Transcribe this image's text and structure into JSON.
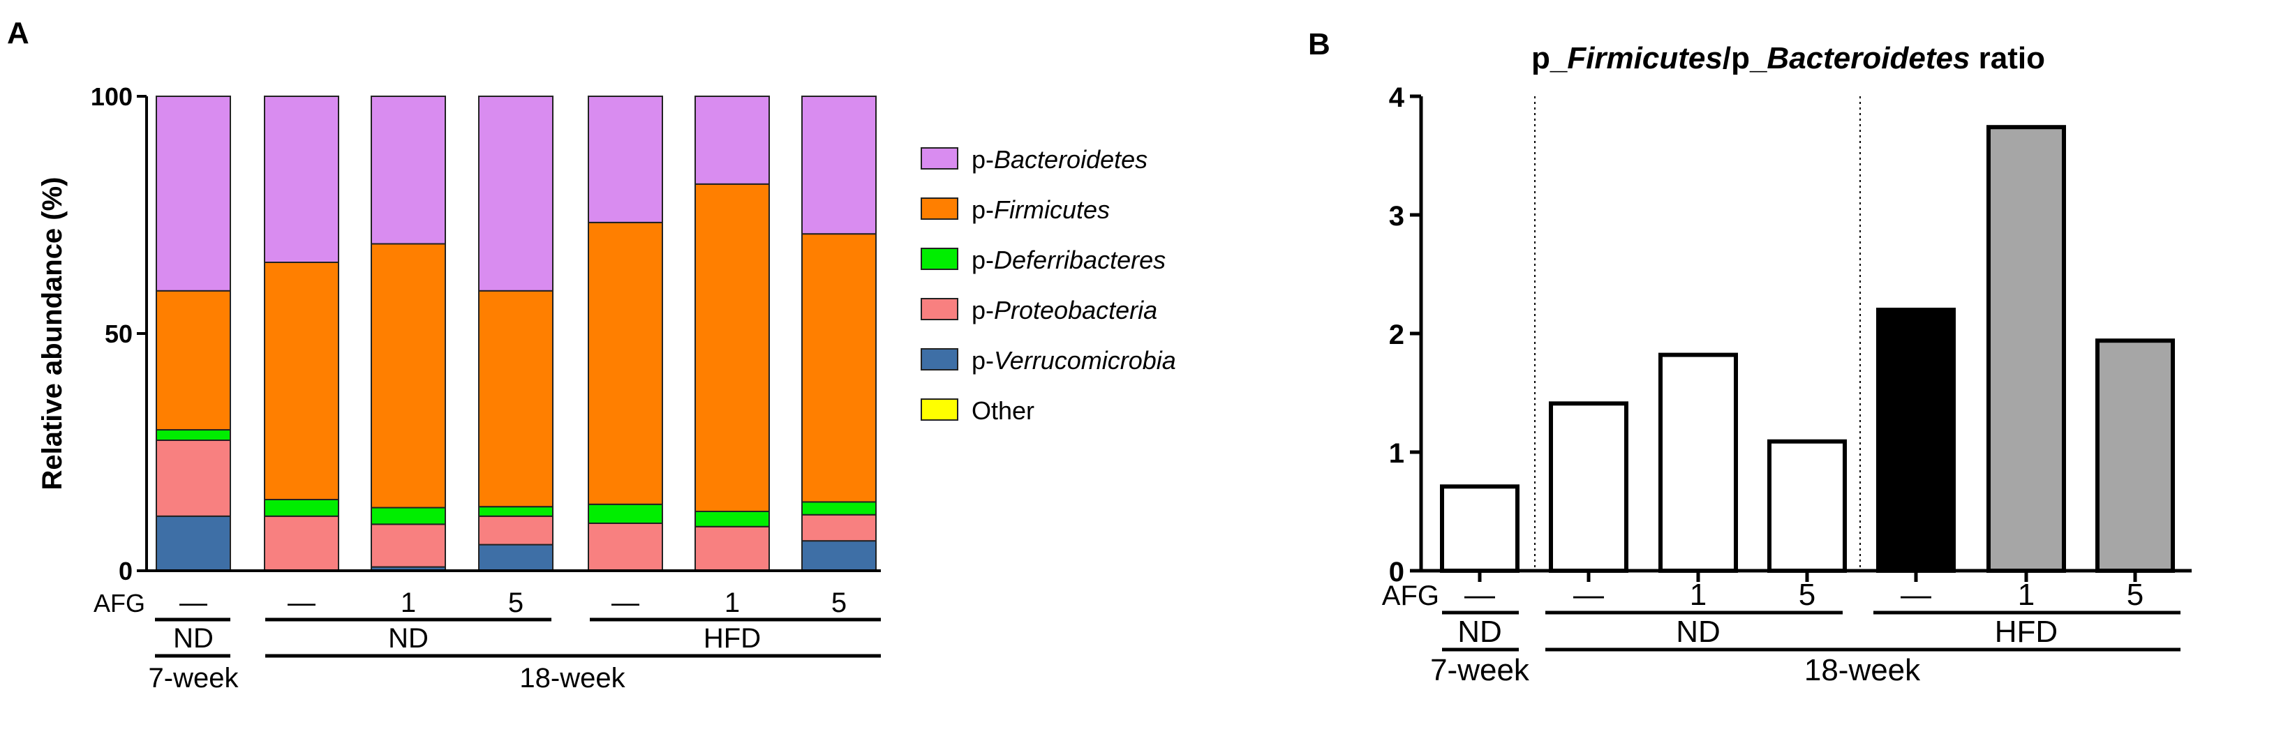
{
  "colors": {
    "bacteroidetes": "#d98cf0",
    "firmicutes": "#ff7f00",
    "deferribacteres": "#00ee00",
    "proteobacteria": "#f88080",
    "verrucomicrobia": "#3e6fa6",
    "other": "#ffff00",
    "nd_bar": "#ffffff",
    "hfd_control_bar": "#000000",
    "hfd_afg_bar": "#a6a6a6"
  },
  "chart_data": [
    {
      "type": "bar",
      "stacked": true,
      "panel_label": "A",
      "ylabel": "Relative abundance (%)",
      "ylim": [
        0,
        100
      ],
      "yticks": [
        "0",
        "50",
        "100"
      ],
      "legend": {
        "placement": "right",
        "entries": [
          {
            "prefix": "p-",
            "name": "Bacteroidetes",
            "italic": true,
            "color_key": "bacteroidetes"
          },
          {
            "prefix": "p-",
            "name": "Firmicutes",
            "italic": true,
            "color_key": "firmicutes"
          },
          {
            "prefix": "p-",
            "name": "Deferribacteres",
            "italic": true,
            "color_key": "deferribacteres"
          },
          {
            "prefix": "p-",
            "name": "Proteobacteria",
            "italic": true,
            "color_key": "proteobacteria"
          },
          {
            "prefix": "p-",
            "name": "Verrucomicrobia",
            "italic": true,
            "color_key": "verrucomicrobia"
          },
          {
            "prefix": "",
            "name": "Other",
            "italic": false,
            "color_key": "other"
          }
        ]
      },
      "groups": {
        "afg_label": "AFG",
        "afg_values": [
          "—",
          "—",
          "1",
          "5",
          "—",
          "1",
          "5"
        ],
        "diet_labels": [
          "ND",
          "ND",
          "HFD"
        ],
        "age_labels": [
          "7-week",
          "18-week"
        ]
      },
      "series_order": [
        "verrucomicrobia",
        "proteobacteria",
        "deferribacteres",
        "firmicutes",
        "bacteroidetes",
        "other"
      ],
      "series": [
        {
          "name": "p-Verrucomicrobia",
          "values": [
            11.5,
            0,
            0.8,
            5.5,
            0,
            0,
            6.3
          ]
        },
        {
          "name": "p-Proteobacteria",
          "values": [
            16,
            11.5,
            9,
            6,
            10,
            9.3,
            5.5
          ]
        },
        {
          "name": "p-Deferribacteres",
          "values": [
            2.2,
            3.5,
            3.5,
            2,
            4,
            3.2,
            2.7
          ]
        },
        {
          "name": "p-Firmicutes",
          "values": [
            29.3,
            50,
            55.6,
            45.5,
            59.4,
            69,
            56.5
          ]
        },
        {
          "name": "p-Bacteroidetes",
          "values": [
            41,
            35,
            31.1,
            41,
            26.6,
            18.5,
            29
          ]
        },
        {
          "name": "Other",
          "values": [
            0,
            0,
            0,
            0,
            0,
            0,
            0
          ]
        }
      ]
    },
    {
      "type": "bar",
      "panel_label": "B",
      "title_parts": [
        {
          "text": "p_",
          "italic": false
        },
        {
          "text": "Firmicutes",
          "italic": true
        },
        {
          "text": "/p_",
          "italic": false
        },
        {
          "text": "Bacteroidetes",
          "italic": true
        },
        {
          "text": " ratio",
          "italic": false
        }
      ],
      "ylim": [
        0,
        4
      ],
      "yticks": [
        "0",
        "1",
        "2",
        "3",
        "4"
      ],
      "values": [
        0.71,
        1.41,
        1.82,
        1.09,
        2.2,
        3.74,
        1.94
      ],
      "bar_color_keys": [
        "nd_bar",
        "nd_bar",
        "nd_bar",
        "nd_bar",
        "hfd_control_bar",
        "hfd_afg_bar",
        "hfd_afg_bar"
      ],
      "groups": {
        "afg_label": "AFG",
        "afg_values": [
          "—",
          "—",
          "1",
          "5",
          "—",
          "1",
          "5"
        ],
        "diet_labels": [
          "ND",
          "ND",
          "HFD"
        ],
        "age_labels": [
          "7-week",
          "18-week"
        ]
      }
    }
  ]
}
